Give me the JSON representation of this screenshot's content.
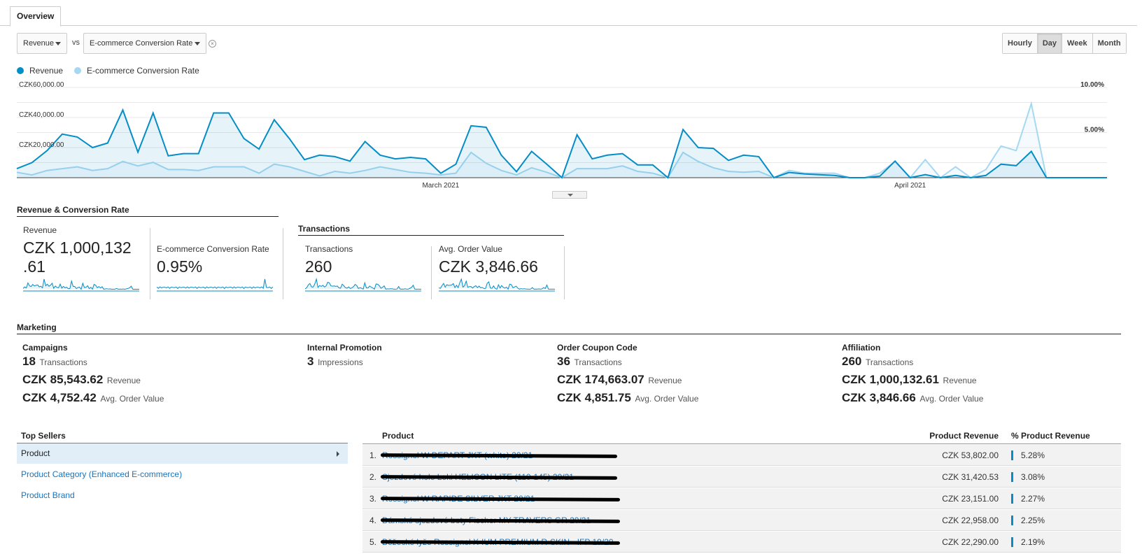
{
  "tabs": [
    "Overview"
  ],
  "controls": {
    "metric1": "Revenue",
    "vs_label": "vs",
    "metric2": "E-commerce Conversion Rate",
    "periods": [
      "Hourly",
      "Day",
      "Week",
      "Month"
    ],
    "active_period": "Day"
  },
  "legend": {
    "series1": "Revenue",
    "series2": "E-commerce Conversion Rate"
  },
  "colors": {
    "revenue": "#058dc7",
    "conversion": "#a6d8f2",
    "link": "#1a73bb"
  },
  "chart_data": {
    "type": "line",
    "x_labels": [
      "March 2021",
      "April 2021"
    ],
    "y_left_ticks": [
      "CZK60,000.00",
      "CZK40,000.00",
      "CZK20,000.00"
    ],
    "y_right_ticks": [
      "10.00%",
      "5.00%"
    ],
    "ylim_left": [
      0,
      60000
    ],
    "ylim_right": [
      0,
      10
    ],
    "series": [
      {
        "name": "Revenue",
        "axis": "left",
        "values": [
          6000,
          10000,
          18000,
          29000,
          27000,
          20000,
          23000,
          45000,
          17000,
          43000,
          14500,
          16000,
          16000,
          43000,
          43000,
          26000,
          19000,
          38500,
          26000,
          12000,
          15000,
          14000,
          11000,
          24000,
          15000,
          12500,
          13500,
          12500,
          3000,
          9000,
          34500,
          33500,
          15000,
          4000,
          17500,
          9000,
          0,
          28500,
          12500,
          15000,
          16000,
          8500,
          8500,
          0,
          32000,
          20000,
          19500,
          11500,
          15000,
          14000,
          0,
          3500,
          2500,
          2000,
          1500,
          0,
          0,
          1000,
          11000,
          0,
          2000,
          0,
          1500,
          0,
          1500,
          9000,
          8000,
          17500,
          0,
          0,
          0,
          0,
          0
        ]
      },
      {
        "name": "E-commerce Conversion Rate",
        "axis": "right",
        "values": [
          0.6,
          0.3,
          0.8,
          1.0,
          1.2,
          0.8,
          1.0,
          1.8,
          1.3,
          1.7,
          0.9,
          0.9,
          0.8,
          1.2,
          1.2,
          1.2,
          0.5,
          1.5,
          1.2,
          0.7,
          0.2,
          0.7,
          0.5,
          0.8,
          1.2,
          0.9,
          0.6,
          0.5,
          0.3,
          0.5,
          2.8,
          1.6,
          0.8,
          0.3,
          1.1,
          0.6,
          0,
          1.0,
          1.0,
          1.0,
          1.3,
          0.7,
          0.5,
          0,
          2.8,
          1.8,
          1.1,
          0.7,
          0.6,
          0.7,
          0,
          0.8,
          0.5,
          0.5,
          0.5,
          0,
          0,
          0.5,
          1.8,
          0,
          2.0,
          0,
          1.2,
          0,
          0.9,
          3.5,
          3.0,
          8.2,
          0,
          0,
          0,
          0,
          0
        ]
      }
    ]
  },
  "summary": {
    "section1_title": "Revenue & Conversion Rate",
    "revenue_label": "Revenue",
    "revenue_value_line1": "CZK 1,000,132",
    "revenue_value_line2": ".61",
    "conv_label": "E-commerce Conversion Rate",
    "conv_value": "0.95%",
    "section2_title": "Transactions",
    "trans_label": "Transactions",
    "trans_value": "260",
    "aov_label": "Avg. Order Value",
    "aov_value": "CZK 3,846.66"
  },
  "marketing": {
    "title": "Marketing",
    "campaigns": {
      "head": "Campaigns",
      "r1n": "18",
      "r1u": "Transactions",
      "r2n": "CZK 85,543.62",
      "r2u": "Revenue",
      "r3n": "CZK 4,752.42",
      "r3u": "Avg. Order Value"
    },
    "internal": {
      "head": "Internal Promotion",
      "r1n": "3",
      "r1u": "Impressions"
    },
    "coupon": {
      "head": "Order Coupon Code",
      "r1n": "36",
      "r1u": "Transactions",
      "r2n": "CZK 174,663.07",
      "r2u": "Revenue",
      "r3n": "CZK 4,851.75",
      "r3u": "Avg. Order Value"
    },
    "affiliation": {
      "head": "Affiliation",
      "r1n": "260",
      "r1u": "Transactions",
      "r2n": "CZK 1,000,132.61",
      "r2u": "Revenue",
      "r3n": "CZK 3,846.66",
      "r3u": "Avg. Order Value"
    }
  },
  "top_sellers": {
    "title": "Top Sellers",
    "items": [
      "Product",
      "Product Category (Enhanced E-commerce)",
      "Product Brand"
    ]
  },
  "product_table": {
    "headers": {
      "product": "Product",
      "revenue": "Product Revenue",
      "pct": "% Product Revenue"
    },
    "rows": [
      {
        "num": "1.",
        "name": "Rossignol W DEPART JKT (white) 20/21",
        "revenue": "CZK 53,802.00",
        "pct": "5.28%",
        "share": 5.28
      },
      {
        "num": "2.",
        "name": "Sjezdové hole Leki HELICON LITE (110-145) 20/21",
        "revenue": "CZK 31,420.53",
        "pct": "3.08%",
        "share": 3.08
      },
      {
        "num": "3.",
        "name": "Rossignol W RAPIDE SILVER JKT 20/21",
        "revenue": "CZK 23,151.00",
        "pct": "2.27%",
        "share": 2.27
      },
      {
        "num": "4.",
        "name": "Dámské sjezdové boty Fischer MY TRAVERS GR 20/21",
        "revenue": "CZK 22,958.00",
        "pct": "2.25%",
        "share": 2.25
      },
      {
        "num": "5.",
        "name": "Běžecké lyže Rossignol X-IUM PREMIUM R-SKIN - IFP 19/20",
        "revenue": "CZK 22,290.00",
        "pct": "2.19%",
        "share": 2.19
      }
    ]
  }
}
